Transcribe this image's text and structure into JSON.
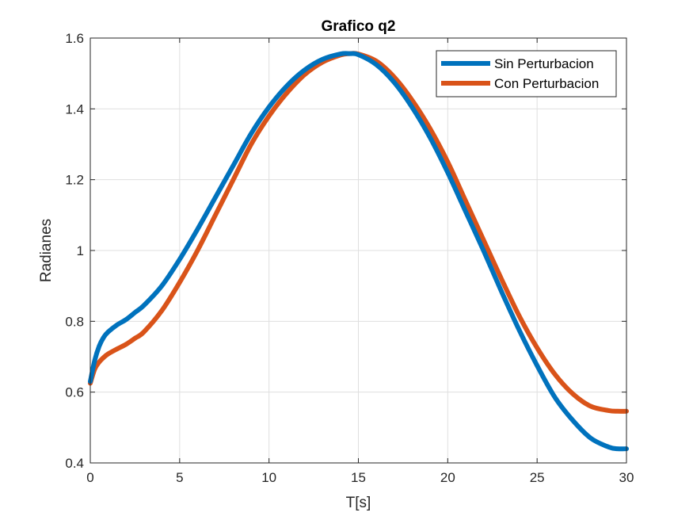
{
  "chart_data": {
    "type": "line",
    "title": "Grafico q2",
    "xlabel": "T[s]",
    "ylabel": "Radianes",
    "xlim": [
      0,
      30
    ],
    "ylim": [
      0.4,
      1.6
    ],
    "xticks": [
      0,
      5,
      10,
      15,
      20,
      25,
      30
    ],
    "xtick_labels": [
      "0",
      "5",
      "10",
      "15",
      "20",
      "25",
      "30"
    ],
    "yticks": [
      0.4,
      0.6,
      0.8,
      1.0,
      1.2,
      1.4,
      1.6
    ],
    "ytick_labels": [
      "0.4",
      "0.6",
      "0.8",
      "1",
      "1.2",
      "1.4",
      "1.6"
    ],
    "grid": true,
    "legend_position": "top-right",
    "series": [
      {
        "name": "Sin Perturbacion",
        "color": "#0072BD",
        "x": [
          0,
          0.25,
          0.5,
          0.75,
          1,
          1.5,
          2,
          2.5,
          3,
          4,
          5,
          6,
          7,
          8,
          9,
          10,
          11,
          12,
          13,
          14,
          14.5,
          15,
          16,
          17,
          18,
          19,
          20,
          21,
          22,
          23,
          24,
          25,
          26,
          27,
          28,
          29,
          29.5,
          30
        ],
        "y": [
          0.63,
          0.69,
          0.73,
          0.755,
          0.77,
          0.79,
          0.805,
          0.825,
          0.845,
          0.9,
          0.975,
          1.06,
          1.15,
          1.24,
          1.33,
          1.405,
          1.465,
          1.51,
          1.54,
          1.555,
          1.556,
          1.553,
          1.525,
          1.475,
          1.405,
          1.32,
          1.22,
          1.11,
          1.0,
          0.885,
          0.775,
          0.675,
          0.585,
          0.52,
          0.47,
          0.445,
          0.44,
          0.44
        ]
      },
      {
        "name": "Con Perturbacion",
        "color": "#D95319",
        "x": [
          0,
          0.25,
          0.5,
          0.75,
          1,
          1.5,
          2,
          2.5,
          3,
          4,
          5,
          6,
          7,
          8,
          9,
          10,
          11,
          12,
          13,
          14,
          14.5,
          15,
          16,
          17,
          18,
          19,
          20,
          21,
          22,
          23,
          24,
          25,
          26,
          27,
          28,
          29,
          29.5,
          30
        ],
        "y": [
          0.625,
          0.665,
          0.685,
          0.698,
          0.708,
          0.722,
          0.735,
          0.752,
          0.77,
          0.83,
          0.91,
          1.0,
          1.1,
          1.2,
          1.3,
          1.38,
          1.445,
          1.497,
          1.532,
          1.552,
          1.556,
          1.555,
          1.535,
          1.49,
          1.425,
          1.345,
          1.25,
          1.14,
          1.03,
          0.92,
          0.815,
          0.725,
          0.65,
          0.595,
          0.56,
          0.548,
          0.546,
          0.546
        ]
      }
    ]
  }
}
